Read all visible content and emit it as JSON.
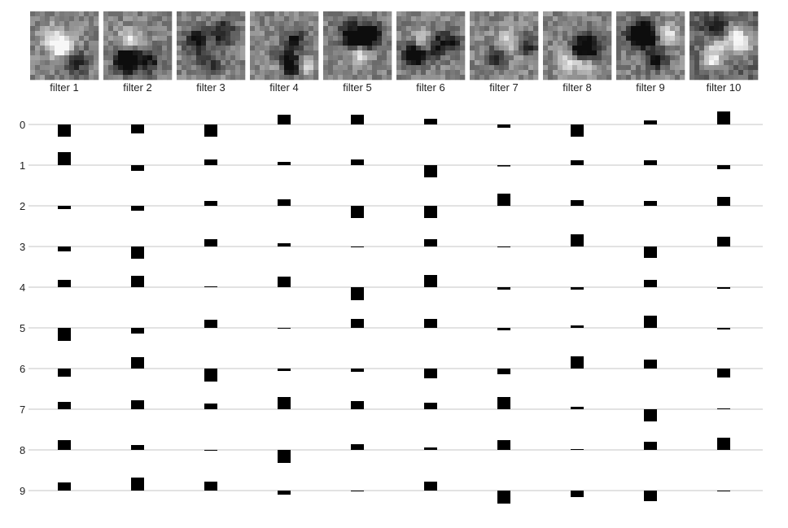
{
  "chart_data": {
    "type": "bar",
    "description_of_marks": "signed bars centered on a baseline per digit row, one column per filter",
    "filters": [
      {
        "label": "filter 1",
        "values": [
          -0.75,
          0.8,
          -0.2,
          -0.3,
          0.45,
          -0.8,
          -0.5,
          0.45,
          0.6,
          0.5
        ]
      },
      {
        "label": "filter 2",
        "values": [
          -0.55,
          -0.35,
          -0.3,
          -0.75,
          0.7,
          -0.35,
          0.7,
          0.55,
          0.3,
          0.8
        ]
      },
      {
        "label": "filter 3",
        "values": [
          -0.75,
          0.35,
          0.3,
          0.45,
          0.0,
          0.5,
          -0.8,
          0.35,
          -0.05,
          0.55
        ]
      },
      {
        "label": "filter 4",
        "values": [
          0.6,
          0.2,
          0.4,
          0.2,
          0.65,
          -0.05,
          -0.15,
          0.75,
          -0.8,
          -0.25
        ]
      },
      {
        "label": "filter 5",
        "values": [
          0.6,
          0.35,
          -0.75,
          -0.03,
          -0.8,
          0.55,
          -0.2,
          0.5,
          0.35,
          -0.03
        ]
      },
      {
        "label": "filter 6",
        "values": [
          0.35,
          -0.75,
          -0.75,
          0.45,
          0.75,
          0.55,
          -0.6,
          0.4,
          0.15,
          0.55
        ]
      },
      {
        "label": "filter 7",
        "values": [
          -0.2,
          -0.08,
          0.75,
          -0.03,
          -0.15,
          -0.15,
          -0.35,
          0.75,
          0.6,
          -0.8
        ]
      },
      {
        "label": "filter 8",
        "values": [
          -0.75,
          0.3,
          0.35,
          0.75,
          -0.15,
          0.15,
          0.75,
          0.15,
          0.03,
          -0.4
        ]
      },
      {
        "label": "filter 9",
        "values": [
          0.25,
          0.3,
          0.3,
          -0.7,
          0.45,
          0.75,
          0.55,
          -0.75,
          0.5,
          -0.65
        ]
      },
      {
        "label": "filter 10",
        "values": [
          0.8,
          -0.25,
          0.55,
          0.6,
          -0.1,
          -0.1,
          -0.55,
          0.05,
          0.75,
          -0.03
        ]
      }
    ],
    "row_labels": [
      "0",
      "1",
      "2",
      "3",
      "4",
      "5",
      "6",
      "7",
      "8",
      "9"
    ],
    "xlabel": "",
    "ylabel": "",
    "grid": true
  },
  "images": [
    {
      "name": "filter-1-image",
      "seed": 11
    },
    {
      "name": "filter-2-image",
      "seed": 23
    },
    {
      "name": "filter-3-image",
      "seed": 37
    },
    {
      "name": "filter-4-image",
      "seed": 41
    },
    {
      "name": "filter-5-image",
      "seed": 53
    },
    {
      "name": "filter-6-image",
      "seed": 67
    },
    {
      "name": "filter-7-image",
      "seed": 71
    },
    {
      "name": "filter-8-image",
      "seed": 83
    },
    {
      "name": "filter-9-image",
      "seed": 97
    },
    {
      "name": "filter-10-image",
      "seed": 101
    }
  ],
  "colors": {
    "bar": "#000000",
    "gridline": "#d9d9d9",
    "text": "#222222"
  }
}
